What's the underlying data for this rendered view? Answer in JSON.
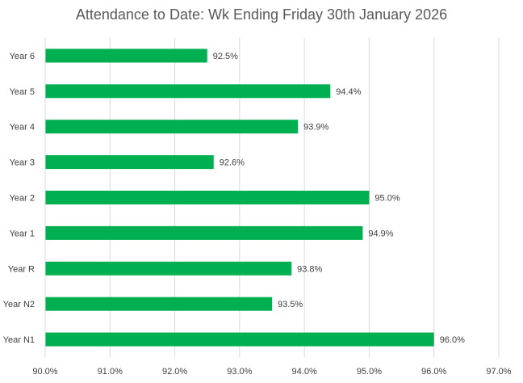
{
  "chart_data": {
    "type": "bar",
    "orientation": "horizontal",
    "title": "Attendance to Date: Wk Ending Friday 30th January 2026",
    "xlabel": "",
    "ylabel": "",
    "categories": [
      "Year 6",
      "Year 5",
      "Year 4",
      "Year 3",
      "Year 2",
      "Year 1",
      "Year R",
      "Year N2",
      "Year N1"
    ],
    "values": [
      92.5,
      94.4,
      93.9,
      92.6,
      95.0,
      94.9,
      93.8,
      93.5,
      96.0
    ],
    "value_labels": [
      "92.5%",
      "94.4%",
      "93.9%",
      "92.6%",
      "95.0%",
      "94.9%",
      "93.8%",
      "93.5%",
      "96.0%"
    ],
    "xlim": [
      90.0,
      97.0
    ],
    "ticks": [
      90.0,
      91.0,
      92.0,
      93.0,
      94.0,
      95.0,
      96.0,
      97.0
    ],
    "tick_labels": [
      "90.0%",
      "91.0%",
      "92.0%",
      "93.0%",
      "94.0%",
      "95.0%",
      "96.0%",
      "97.0%"
    ],
    "grid": true,
    "bar_color": "#00B050",
    "grid_color": "#D9D9D9",
    "text_color": "#404040",
    "title_color": "#595959"
  }
}
